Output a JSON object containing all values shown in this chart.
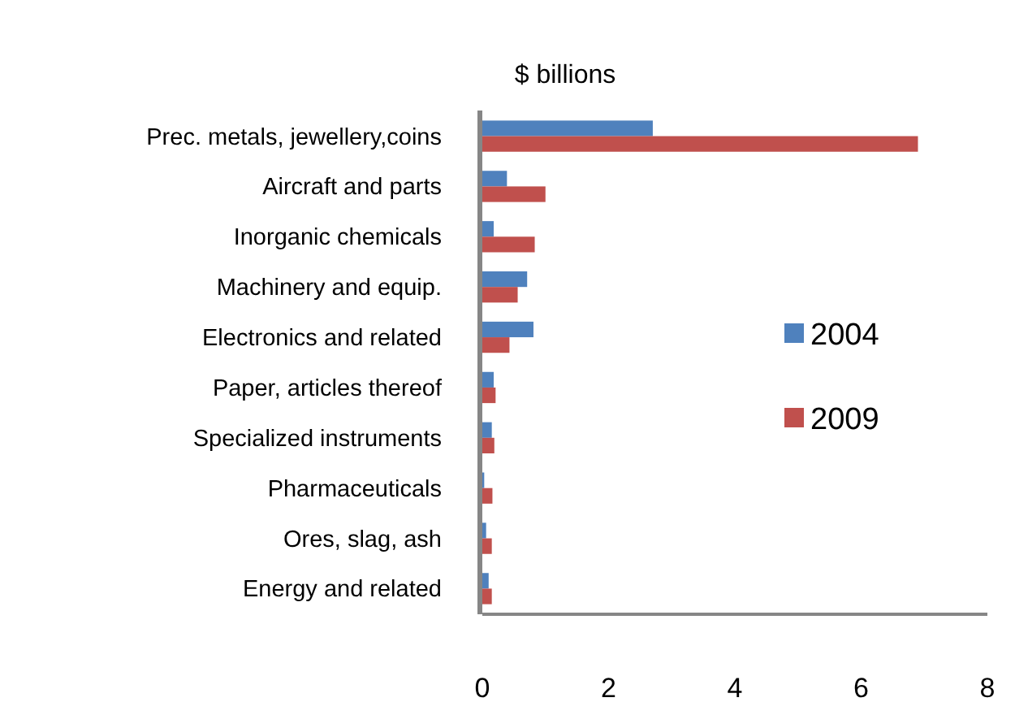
{
  "chart_data": {
    "type": "bar",
    "orientation": "horizontal",
    "title": "$ billions",
    "categories": [
      "Prec. metals, jewellery,coins",
      "Aircraft and parts",
      "Inorganic chemicals",
      "Machinery and equip.",
      "Electronics and related",
      "Paper, articles thereof",
      "Specialized instruments",
      "Pharmaceuticals",
      "Ores, slag, ash",
      "Energy and related"
    ],
    "series": [
      {
        "name": "2004",
        "color": "#4f81bd",
        "values": [
          2.7,
          0.39,
          0.18,
          0.71,
          0.81,
          0.18,
          0.15,
          0.03,
          0.06,
          0.1
        ]
      },
      {
        "name": "2009",
        "color": "#c0504d",
        "values": [
          6.9,
          1.0,
          0.83,
          0.56,
          0.43,
          0.21,
          0.19,
          0.16,
          0.15,
          0.15
        ]
      }
    ],
    "xlim": [
      0,
      8
    ],
    "xticks": [
      0,
      2,
      4,
      6,
      8
    ],
    "grid": false,
    "legend": "right"
  }
}
